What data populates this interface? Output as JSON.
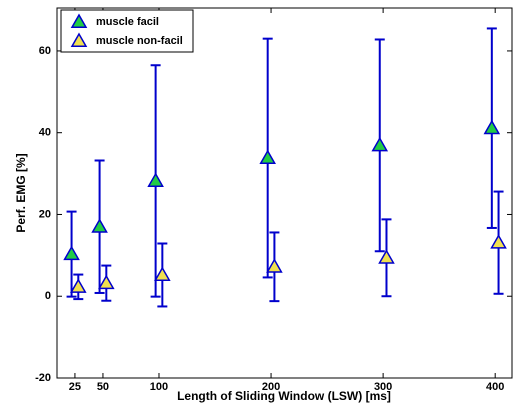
{
  "chart_data": {
    "type": "errorbar",
    "x_label": "Length of Sliding Window (LSW) [ms]",
    "y_label": "Perf. EMG [%]",
    "xlim": [
      9,
      415
    ],
    "ylim": [
      -20,
      70.5
    ],
    "xticks": [
      25,
      50,
      100,
      200,
      300,
      400
    ],
    "yticks": [
      -20,
      0,
      20,
      40,
      60
    ],
    "legend": "upper-left",
    "error_color": "#0000cc",
    "series": [
      {
        "name": "muscle facil",
        "color": "#22cc44",
        "x": [
          22,
          47,
          97,
          197,
          297,
          397
        ],
        "values": [
          10.3,
          17,
          28.2,
          33.8,
          36.9,
          41.1
        ],
        "errors": [
          10.4,
          16.2,
          28.3,
          29.2,
          25.9,
          24.4
        ]
      },
      {
        "name": "muscle non-facil",
        "color": "#f0e050",
        "x": [
          28,
          53,
          103,
          203,
          303,
          403
        ],
        "values": [
          2.3,
          3.2,
          5.2,
          7.2,
          9.4,
          13.1
        ],
        "errors": [
          3,
          4.3,
          7.7,
          8.4,
          9.4,
          12.5
        ]
      }
    ]
  }
}
